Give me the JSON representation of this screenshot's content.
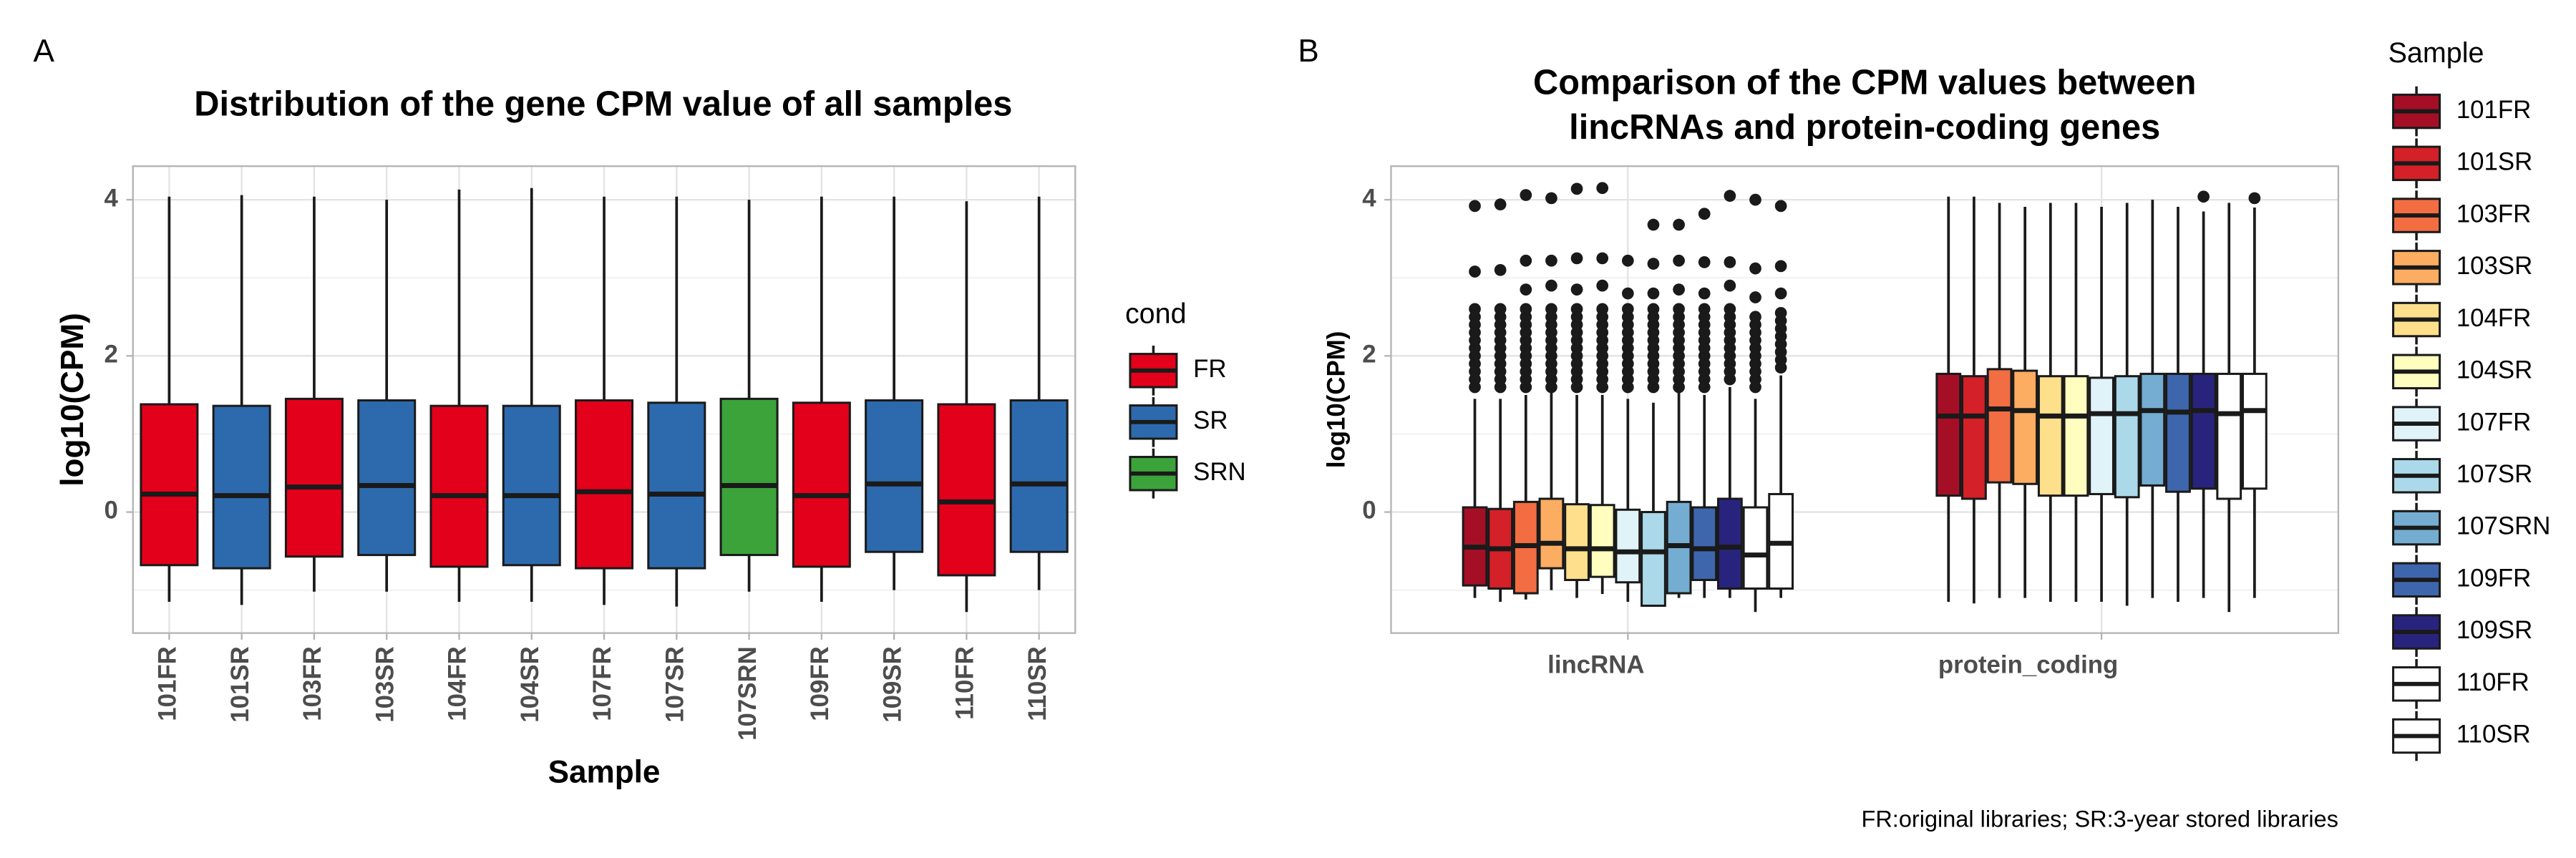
{
  "chart_data": [
    {
      "type": "box",
      "panel_label": "A",
      "title": "Distribution of the gene CPM value of all samples",
      "xlabel": "Sample",
      "ylabel": "log10(CPM)",
      "categories": [
        "101FR",
        "101SR",
        "103FR",
        "103SR",
        "104FR",
        "104SR",
        "107FR",
        "107SR",
        "107SRN",
        "109FR",
        "109SR",
        "110FR",
        "110SR"
      ],
      "groups": [
        "FR",
        "SR",
        "FR",
        "SR",
        "FR",
        "SR",
        "FR",
        "SR",
        "SRN",
        "FR",
        "SR",
        "FR",
        "SR"
      ],
      "legend_title": "cond",
      "legend": [
        {
          "name": "FR",
          "color": "#e3001b"
        },
        {
          "name": "SR",
          "color": "#2d6aad"
        },
        {
          "name": "SRN",
          "color": "#3ba33a"
        }
      ],
      "legend_position": "right",
      "whisker_low": [
        -1.15,
        -1.19,
        -1.02,
        -1.02,
        -1.15,
        -1.15,
        -1.19,
        -1.21,
        -1.02,
        -1.15,
        -1.0,
        -1.28,
        -1.0
      ],
      "q1": [
        -0.68,
        -0.72,
        -0.57,
        -0.55,
        -0.7,
        -0.68,
        -0.72,
        -0.72,
        -0.55,
        -0.7,
        -0.51,
        -0.81,
        -0.51
      ],
      "median": [
        0.23,
        0.21,
        0.32,
        0.34,
        0.21,
        0.21,
        0.26,
        0.23,
        0.34,
        0.21,
        0.36,
        0.13,
        0.36
      ],
      "q3": [
        1.38,
        1.36,
        1.45,
        1.43,
        1.36,
        1.36,
        1.43,
        1.4,
        1.45,
        1.4,
        1.43,
        1.38,
        1.43
      ],
      "whisker_high": [
        4.04,
        4.06,
        4.04,
        4.0,
        4.13,
        4.15,
        4.04,
        4.04,
        4.0,
        4.04,
        4.04,
        3.98,
        4.04
      ],
      "ylim": [
        -1.55,
        4.43
      ],
      "yticks": [
        0,
        2,
        4
      ],
      "grid": true,
      "minor_grid": true
    },
    {
      "type": "grouped_box",
      "panel_label": "B",
      "title": [
        "Comparison of the CPM values between",
        "lincRNAs and protein-coding genes"
      ],
      "ylabel": "log10(CPM)",
      "categories": [
        "lincRNA",
        "protein_coding"
      ],
      "legend_title": "Sample",
      "legend_position": "right",
      "note": "FR:original libraries; SR:3-year stored libraries",
      "series": [
        {
          "name": "101FR",
          "color": "#a50f26",
          "whisker_low": [
            -1.1,
            -1.15
          ],
          "q1": [
            -0.94,
            0.21
          ],
          "median": [
            -0.45,
            1.23
          ],
          "q3": [
            0.06,
            1.77
          ],
          "whisker_high": [
            1.45,
            4.04
          ],
          "outliers": [
            [
              1.6,
              1.7,
              1.8,
              1.9,
              2.0,
              2.1,
              2.2,
              2.3,
              2.4,
              2.5,
              2.6,
              3.08,
              3.92
            ],
            []
          ]
        },
        {
          "name": "101SR",
          "color": "#d42028",
          "whisker_low": [
            -1.15,
            -1.17
          ],
          "q1": [
            -0.98,
            0.17
          ],
          "median": [
            -0.47,
            1.23
          ],
          "q3": [
            0.04,
            1.74
          ],
          "whisker_high": [
            1.45,
            4.04
          ],
          "outliers": [
            [
              1.6,
              1.7,
              1.8,
              1.9,
              2.0,
              2.1,
              2.2,
              2.3,
              2.4,
              2.5,
              2.6,
              3.1,
              3.94
            ],
            []
          ]
        },
        {
          "name": "103FR",
          "color": "#f36d43",
          "whisker_low": [
            -1.12,
            -1.1
          ],
          "q1": [
            -1.04,
            0.38
          ],
          "median": [
            -0.43,
            1.32
          ],
          "q3": [
            0.13,
            1.83
          ],
          "whisker_high": [
            1.5,
            3.96
          ],
          "outliers": [
            [
              1.6,
              1.7,
              1.8,
              1.9,
              2.0,
              2.1,
              2.2,
              2.3,
              2.4,
              2.5,
              2.6,
              2.85,
              3.22,
              4.06
            ],
            []
          ]
        },
        {
          "name": "103SR",
          "color": "#fcad61",
          "whisker_low": [
            -1.0,
            -1.1
          ],
          "q1": [
            -0.72,
            0.36
          ],
          "median": [
            -0.4,
            1.3
          ],
          "q3": [
            0.17,
            1.81
          ],
          "whisker_high": [
            1.55,
            3.91
          ],
          "outliers": [
            [
              1.6,
              1.7,
              1.8,
              1.9,
              2.0,
              2.1,
              2.2,
              2.3,
              2.4,
              2.5,
              2.6,
              2.9,
              3.22,
              4.02
            ],
            []
          ]
        },
        {
          "name": "104FR",
          "color": "#fedf8b",
          "whisker_low": [
            -1.1,
            -1.15
          ],
          "q1": [
            -0.87,
            0.21
          ],
          "median": [
            -0.47,
            1.23
          ],
          "q3": [
            0.1,
            1.74
          ],
          "whisker_high": [
            1.5,
            3.96
          ],
          "outliers": [
            [
              1.6,
              1.7,
              1.8,
              1.9,
              2.0,
              2.1,
              2.2,
              2.3,
              2.4,
              2.5,
              2.6,
              2.85,
              3.25,
              4.14
            ],
            []
          ]
        },
        {
          "name": "104SR",
          "color": "#fffebe",
          "whisker_low": [
            -1.05,
            -1.15
          ],
          "q1": [
            -0.83,
            0.21
          ],
          "median": [
            -0.47,
            1.23
          ],
          "q3": [
            0.09,
            1.74
          ],
          "whisker_high": [
            1.5,
            3.96
          ],
          "outliers": [
            [
              1.6,
              1.7,
              1.8,
              1.9,
              2.0,
              2.1,
              2.2,
              2.3,
              2.4,
              2.5,
              2.6,
              2.9,
              3.25,
              4.15
            ],
            []
          ]
        },
        {
          "name": "107FR",
          "color": "#e0f3f8",
          "whisker_low": [
            -1.15,
            -1.15
          ],
          "q1": [
            -0.9,
            0.23
          ],
          "median": [
            -0.51,
            1.26
          ],
          "q3": [
            0.03,
            1.72
          ],
          "whisker_high": [
            1.45,
            3.91
          ],
          "outliers": [
            [
              1.6,
              1.7,
              1.8,
              1.9,
              2.0,
              2.1,
              2.2,
              2.3,
              2.4,
              2.5,
              2.6,
              2.8,
              3.22
            ],
            []
          ]
        },
        {
          "name": "107SR",
          "color": "#abd9e9",
          "whisker_low": [
            -1.2,
            -1.2
          ],
          "q1": [
            -1.2,
            0.19
          ],
          "median": [
            -0.51,
            1.26
          ],
          "q3": [
            0.0,
            1.74
          ],
          "whisker_high": [
            1.4,
            3.96
          ],
          "outliers": [
            [
              1.6,
              1.7,
              1.8,
              1.9,
              2.0,
              2.1,
              2.2,
              2.3,
              2.4,
              2.5,
              2.6,
              2.8,
              3.18,
              3.68
            ],
            []
          ]
        },
        {
          "name": "107SRN",
          "color": "#74add1",
          "whisker_low": [
            -1.1,
            -1.1
          ],
          "q1": [
            -1.04,
            0.34
          ],
          "median": [
            -0.43,
            1.3
          ],
          "q3": [
            0.13,
            1.77
          ],
          "whisker_high": [
            1.55,
            4.0
          ],
          "outliers": [
            [
              1.6,
              1.7,
              1.8,
              1.9,
              2.0,
              2.1,
              2.2,
              2.3,
              2.4,
              2.5,
              2.6,
              2.85,
              3.22,
              3.68
            ],
            []
          ]
        },
        {
          "name": "109FR",
          "color": "#3e66ad",
          "whisker_low": [
            -1.1,
            -1.15
          ],
          "q1": [
            -0.87,
            0.26
          ],
          "median": [
            -0.47,
            1.28
          ],
          "q3": [
            0.06,
            1.77
          ],
          "whisker_high": [
            1.5,
            3.91
          ],
          "outliers": [
            [
              1.6,
              1.7,
              1.8,
              1.9,
              2.0,
              2.1,
              2.2,
              2.3,
              2.4,
              2.5,
              2.6,
              2.8,
              3.2,
              3.82
            ],
            []
          ]
        },
        {
          "name": "109SR",
          "color": "#28247e",
          "whisker_low": [
            -1.1,
            -1.1
          ],
          "q1": [
            -0.98,
            0.3
          ],
          "median": [
            -0.45,
            1.3
          ],
          "q3": [
            0.17,
            1.77
          ],
          "whisker_high": [
            1.6,
            3.85
          ],
          "outliers": [
            [
              1.7,
              1.8,
              1.9,
              2.0,
              2.1,
              2.2,
              2.3,
              2.4,
              2.5,
              2.6,
              2.9,
              3.2,
              4.05
            ],
            [
              4.04
            ]
          ]
        },
        {
          "name": "110FR",
          "color": "#ffffff",
          "whisker_low": [
            -1.28,
            -1.28
          ],
          "q1": [
            -0.98,
            0.17
          ],
          "median": [
            -0.55,
            1.26
          ],
          "q3": [
            0.06,
            1.77
          ],
          "whisker_high": [
            1.45,
            3.96
          ],
          "outliers": [
            [
              1.6,
              1.7,
              1.8,
              1.9,
              2.0,
              2.1,
              2.2,
              2.3,
              2.4,
              2.5,
              2.75,
              3.12,
              4.0
            ],
            []
          ]
        },
        {
          "name": "110SR",
          "color": "#ffffff",
          "whisker_low": [
            -1.1,
            -1.1
          ],
          "q1": [
            -0.98,
            0.3
          ],
          "median": [
            -0.4,
            1.3
          ],
          "q3": [
            0.23,
            1.77
          ],
          "whisker_high": [
            1.75,
            3.9
          ],
          "outliers": [
            [
              1.85,
              1.95,
              2.05,
              2.15,
              2.25,
              2.35,
              2.45,
              2.55,
              2.8,
              3.15,
              3.92
            ],
            [
              4.02
            ]
          ]
        }
      ],
      "ylim": [
        -1.55,
        4.43
      ],
      "yticks": [
        0,
        2,
        4
      ],
      "grid": true,
      "minor_grid": true
    }
  ]
}
